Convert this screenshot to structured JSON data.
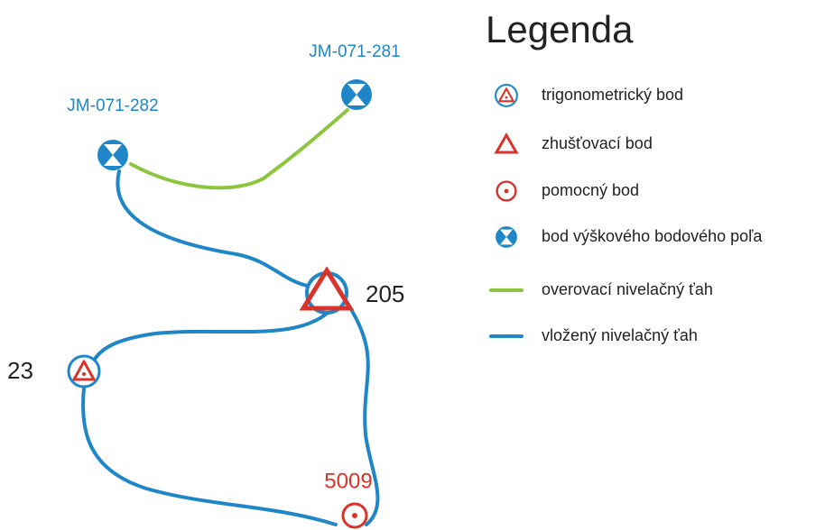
{
  "nodes": [
    {
      "label": "JM-071-282"
    },
    {
      "label": "JM-071-281"
    },
    {
      "label": "205"
    },
    {
      "label": "23"
    },
    {
      "label": "5009"
    }
  ],
  "legend": {
    "title": "Legenda",
    "items": [
      {
        "label": "trigonometrický bod"
      },
      {
        "label": "zhušťovací bod"
      },
      {
        "label": "pomocný bod"
      },
      {
        "label": "bod výškového bodového poľa"
      },
      {
        "label": "overovací nivelačný ťah"
      },
      {
        "label": "vložený nivelačný ťah"
      }
    ]
  }
}
